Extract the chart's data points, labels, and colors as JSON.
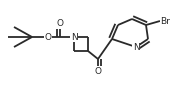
{
  "bg_color": "#ffffff",
  "line_color": "#2a2a2a",
  "bond_width": 1.3,
  "font_size": 6.5,
  "figsize": [
    1.83,
    0.89
  ],
  "dpi": 100,
  "xlim": [
    0,
    183
  ],
  "ylim": [
    0,
    89
  ]
}
